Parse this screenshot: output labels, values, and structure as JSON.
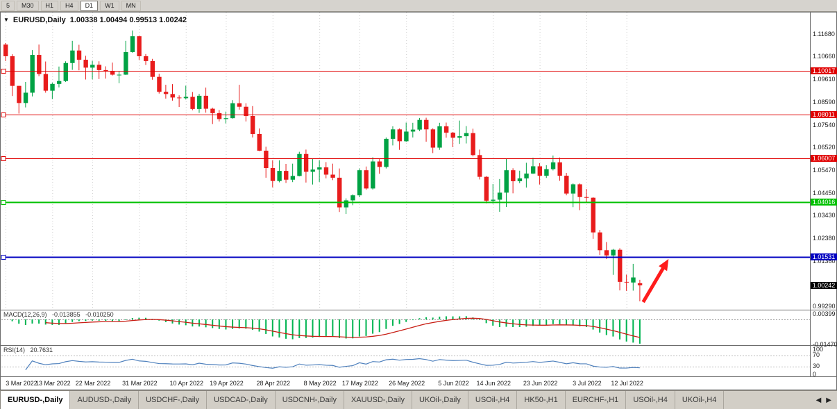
{
  "toolbar": {
    "timeframes": [
      "5",
      "M30",
      "H1",
      "H4",
      "D1",
      "W1",
      "MN"
    ],
    "active": "D1"
  },
  "chart_title": {
    "menu_icon": "▼",
    "symbol_period": "EURUSD,Daily",
    "ohlc_text": "1.00338 1.00494 0.99513 1.00242"
  },
  "chart_data": {
    "type": "candlestick",
    "title": "EURUSD,Daily",
    "last_candle_ohlc": {
      "open": 1.00338,
      "high": 1.00494,
      "low": 0.99513,
      "close": 1.00242
    },
    "y_axis_labels": [
      "1.11680",
      "1.10660",
      "1.09610",
      "1.08590",
      "1.07540",
      "1.06520",
      "1.05470",
      "1.04450",
      "1.03430",
      "1.02380",
      "1.01360",
      "0.99290"
    ],
    "x_axis_labels": [
      {
        "label": "3 Mar 2022",
        "candle_index": 0
      },
      {
        "label": "13 Mar 2022",
        "candle_index": 7
      },
      {
        "label": "22 Mar 2022",
        "candle_index": 13
      },
      {
        "label": "31 Mar 2022",
        "candle_index": 20
      },
      {
        "label": "10 Apr 2022",
        "candle_index": 27
      },
      {
        "label": "19 Apr 2022",
        "candle_index": 33
      },
      {
        "label": "28 Apr 2022",
        "candle_index": 40
      },
      {
        "label": "8 May 2022",
        "candle_index": 47
      },
      {
        "label": "17 May 2022",
        "candle_index": 53
      },
      {
        "label": "26 May 2022",
        "candle_index": 60
      },
      {
        "label": "5 Jun 2022",
        "candle_index": 67
      },
      {
        "label": "14 Jun 2022",
        "candle_index": 73
      },
      {
        "label": "23 Jun 2022",
        "candle_index": 80
      },
      {
        "label": "3 Jul 2022",
        "candle_index": 87
      },
      {
        "label": "12 Jul 2022",
        "candle_index": 93
      }
    ],
    "candles": [
      [
        1.112,
        1.1127,
        1.1045,
        1.1067
      ],
      [
        1.1067,
        1.1076,
        1.0886,
        1.0932
      ],
      [
        1.0932,
        1.0932,
        1.0806,
        1.0854
      ],
      [
        1.0854,
        1.095,
        1.0834,
        1.0901
      ],
      [
        1.0901,
        1.1095,
        1.0884,
        1.1073
      ],
      [
        1.1073,
        1.112,
        1.0976,
        1.0986
      ],
      [
        1.0986,
        1.1043,
        1.0901,
        1.091
      ],
      [
        1.091,
        1.0947,
        1.0872,
        1.0941
      ],
      [
        1.0941,
        1.102,
        1.0925,
        1.0954
      ],
      [
        1.0954,
        1.1044,
        1.095,
        1.1036
      ],
      [
        1.1036,
        1.1137,
        1.1005,
        1.1093
      ],
      [
        1.1093,
        1.1119,
        1.1003,
        1.1051
      ],
      [
        1.1051,
        1.1069,
        1.0961,
        1.1015
      ],
      [
        1.1015,
        1.1046,
        1.0962,
        1.1028
      ],
      [
        1.1028,
        1.1044,
        1.0963,
        1.1004
      ],
      [
        1.1004,
        1.1021,
        1.0965,
        1.0997
      ],
      [
        1.0997,
        1.1038,
        1.0979,
        1.0983
      ],
      [
        1.0983,
        1.1,
        1.0944,
        1.0983
      ],
      [
        1.0983,
        1.1137,
        1.0982,
        1.1086
      ],
      [
        1.1086,
        1.1184,
        1.1083,
        1.1158
      ],
      [
        1.1158,
        1.116,
        1.105,
        1.1067
      ],
      [
        1.1067,
        1.1077,
        1.1027,
        1.1045
      ],
      [
        1.1045,
        1.1055,
        1.096,
        1.0973
      ],
      [
        1.0973,
        1.0987,
        1.0897,
        1.0905
      ],
      [
        1.0905,
        1.0937,
        1.0874,
        1.0895
      ],
      [
        1.0895,
        1.094,
        1.0865,
        1.0879
      ],
      [
        1.0879,
        1.0889,
        1.0836,
        1.0876
      ],
      [
        1.0876,
        1.0933,
        1.087,
        1.0882
      ],
      [
        1.0882,
        1.0904,
        1.0821,
        1.0827
      ],
      [
        1.0827,
        1.0896,
        1.0809,
        1.0887
      ],
      [
        1.0887,
        1.0924,
        1.081,
        1.0828
      ],
      [
        1.0828,
        1.0833,
        1.0758,
        1.0808
      ],
      [
        1.0808,
        1.0822,
        1.077,
        1.0781
      ],
      [
        1.0781,
        1.0815,
        1.0761,
        1.0785
      ],
      [
        1.0785,
        1.0867,
        1.0783,
        1.0853
      ],
      [
        1.0853,
        1.0937,
        1.0824,
        1.0837
      ],
      [
        1.0837,
        1.0853,
        1.077,
        1.0795
      ],
      [
        1.0795,
        1.084,
        1.0697,
        1.0713
      ],
      [
        1.0713,
        1.0738,
        1.0635,
        1.0637
      ],
      [
        1.0637,
        1.0655,
        1.0514,
        1.0558
      ],
      [
        1.0558,
        1.0593,
        1.047,
        1.0499
      ],
      [
        1.0499,
        1.0593,
        1.0493,
        1.0545
      ],
      [
        1.0545,
        1.0577,
        1.049,
        1.0505
      ],
      [
        1.0505,
        1.0578,
        1.0494,
        1.0522
      ],
      [
        1.0522,
        1.0632,
        1.052,
        1.0622
      ],
      [
        1.0622,
        1.0642,
        1.0492,
        1.0541
      ],
      [
        1.0541,
        1.0599,
        1.0483,
        1.0551
      ],
      [
        1.0551,
        1.0593,
        1.0495,
        1.0561
      ],
      [
        1.0561,
        1.0585,
        1.0511,
        1.0528
      ],
      [
        1.0528,
        1.0578,
        1.0503,
        1.0514
      ],
      [
        1.0514,
        1.0556,
        1.0358,
        1.0379
      ],
      [
        1.0379,
        1.042,
        1.0349,
        1.0411
      ],
      [
        1.0411,
        1.0438,
        1.0389,
        1.0434
      ],
      [
        1.0434,
        1.0556,
        1.0425,
        1.0548
      ],
      [
        1.0548,
        1.0565,
        1.0459,
        1.0465
      ],
      [
        1.0465,
        1.0607,
        1.046,
        1.0588
      ],
      [
        1.0588,
        1.0599,
        1.0532,
        1.0563
      ],
      [
        1.0563,
        1.0697,
        1.0556,
        1.0691
      ],
      [
        1.0691,
        1.0748,
        1.0661,
        1.0734
      ],
      [
        1.0734,
        1.0738,
        1.0641,
        1.068
      ],
      [
        1.068,
        1.0765,
        1.0677,
        1.0724
      ],
      [
        1.0724,
        1.0764,
        1.0697,
        1.0733
      ],
      [
        1.0733,
        1.0786,
        1.0726,
        1.0777
      ],
      [
        1.0777,
        1.0787,
        1.0678,
        1.0734
      ],
      [
        1.0734,
        1.0739,
        1.0626,
        1.0651
      ],
      [
        1.0651,
        1.0764,
        1.0641,
        1.0748
      ],
      [
        1.0748,
        1.0765,
        1.0696,
        1.0719
      ],
      [
        1.0719,
        1.0722,
        1.0653,
        1.0696
      ],
      [
        1.0696,
        1.0774,
        1.0668,
        1.0703
      ],
      [
        1.0703,
        1.0749,
        1.067,
        1.0717
      ],
      [
        1.0717,
        1.0737,
        1.0611,
        1.0617
      ],
      [
        1.0617,
        1.0642,
        1.0506,
        1.0518
      ],
      [
        1.0518,
        1.0521,
        1.0397,
        1.0409
      ],
      [
        1.0409,
        1.0485,
        1.0396,
        1.0414
      ],
      [
        1.0414,
        1.0508,
        1.0359,
        1.0446
      ],
      [
        1.0446,
        1.0601,
        1.0381,
        1.0548
      ],
      [
        1.0548,
        1.0557,
        1.0443,
        1.0498
      ],
      [
        1.0498,
        1.0546,
        1.0489,
        1.0511
      ],
      [
        1.0511,
        1.0582,
        1.0469,
        1.0533
      ],
      [
        1.0533,
        1.0605,
        1.0531,
        1.0566
      ],
      [
        1.0566,
        1.058,
        1.0483,
        1.0523
      ],
      [
        1.0523,
        1.0571,
        1.0513,
        1.0553
      ],
      [
        1.0553,
        1.0615,
        1.0547,
        1.0584
      ],
      [
        1.0584,
        1.0606,
        1.05,
        1.0523
      ],
      [
        1.0523,
        1.0536,
        1.0434,
        1.0442
      ],
      [
        1.0442,
        1.0488,
        1.038,
        1.0484
      ],
      [
        1.0484,
        1.0488,
        1.0366,
        1.0426
      ],
      [
        1.0426,
        1.0463,
        1.0403,
        1.0423
      ],
      [
        1.0423,
        1.0425,
        1.0236,
        1.0265
      ],
      [
        1.0265,
        1.0276,
        1.0162,
        1.0184
      ],
      [
        1.0184,
        1.0221,
        1.0144,
        1.016
      ],
      [
        1.016,
        1.019,
        1.0072,
        1.0186
      ],
      [
        1.0186,
        1.0193,
        1.0001,
        1.004
      ],
      [
        1.004,
        1.0073,
        0.9999,
        1.0037
      ],
      [
        1.0037,
        1.0122,
        1.0,
        1.006
      ],
      [
        1.00338,
        1.00494,
        0.99513,
        1.00242
      ]
    ],
    "levels": [
      {
        "price": 1.10017,
        "label": "1.10017",
        "color": "#e00000",
        "line_width": 1
      },
      {
        "price": 1.08011,
        "label": "1.08011",
        "color": "#e00000",
        "line_width": 1
      },
      {
        "price": 1.06007,
        "label": "1.06007",
        "color": "#e00000",
        "line_width": 1
      },
      {
        "price": 1.04016,
        "label": "1.04016",
        "color": "#00c000",
        "line_width": 2
      },
      {
        "price": 1.01531,
        "label": "1.01531",
        "color": "#0000c0",
        "line_width": 2
      }
    ],
    "current_price": {
      "price": 1.00242,
      "label": "1.00242",
      "badge_color": "#000000"
    },
    "colors": {
      "up": "#00a244",
      "down": "#e81c1c",
      "background": "#ffffff"
    },
    "indicators": {
      "macd": {
        "label": "MACD(12,26,9)",
        "value_main": "-0.013855",
        "value_signal": "-0.010250",
        "axis_labels": [
          {
            "text": "0.00399",
            "value": 0.00399
          },
          {
            "text": "-0.01470",
            "value": -0.0147
          }
        ],
        "histogram_color": "#00b450",
        "signal_color": "#c81e14"
      },
      "rsi": {
        "label": "RSI(14)",
        "value": "20.7631",
        "period": 14,
        "axis_labels": [
          {
            "text": "100",
            "value": 100
          },
          {
            "text": "70",
            "value": 70
          },
          {
            "text": "30",
            "value": 30
          },
          {
            "text": "0",
            "value": 0
          }
        ],
        "line_color": "#4f81bd",
        "level_lines": [
          70,
          30
        ]
      }
    },
    "annotation_arrow": {
      "color": "#ff1c1c",
      "from": {
        "index": 95.5,
        "price": 0.9948
      },
      "to": {
        "index": 99.3,
        "price": 1.0144
      }
    }
  },
  "tabs": {
    "items": [
      {
        "label": "EURUSD-,Daily",
        "active": true
      },
      {
        "label": "AUDUSD-,Daily",
        "active": false
      },
      {
        "label": "USDCHF-,Daily",
        "active": false
      },
      {
        "label": "USDCAD-,Daily",
        "active": false
      },
      {
        "label": "USDCNH-,Daily",
        "active": false
      },
      {
        "label": "XAUUSD-,Daily",
        "active": false
      },
      {
        "label": "UKOil-,Daily",
        "active": false
      },
      {
        "label": "USOil-,H4",
        "active": false
      },
      {
        "label": "HK50-,H1",
        "active": false
      },
      {
        "label": "EURCHF-,H1",
        "active": false
      },
      {
        "label": "USOil-,H4",
        "active": false
      },
      {
        "label": "UKOil-,H4",
        "active": false
      }
    ],
    "scroll_left_icon": "◀",
    "scroll_right_icon": "▶"
  }
}
